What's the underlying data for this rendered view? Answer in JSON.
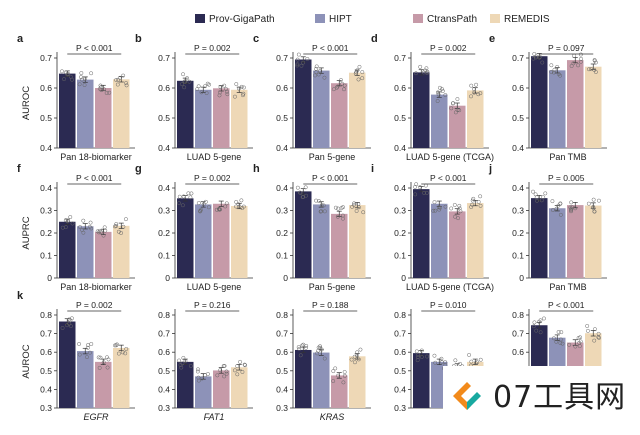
{
  "legend": {
    "series": [
      {
        "name": "Prov-GigaPath",
        "color": "#2b2a52"
      },
      {
        "name": "HIPT",
        "color": "#8d92b8"
      },
      {
        "name": "CtransPath",
        "color": "#c69aa8"
      },
      {
        "name": "REMEDIS",
        "color": "#eed8b6"
      }
    ]
  },
  "watermark": {
    "text": "07工具网",
    "colors": {
      "orange": "#f28a1b",
      "teal": "#18a9a0"
    }
  },
  "chart_data": [
    {
      "type": "bar",
      "panel_letter": "a",
      "row": 0,
      "col": 0,
      "ylabel": "AUROC",
      "xlabel": "Pan 18-biomarker",
      "xlabel_italic": false,
      "ylim": [
        0.4,
        0.7
      ],
      "ticks": [
        "0.4",
        "0.5",
        "0.6",
        "0.7"
      ],
      "p_text": "P < 0.001",
      "values": [
        0.648,
        0.628,
        0.6,
        0.629
      ]
    },
    {
      "type": "bar",
      "panel_letter": "b",
      "row": 0,
      "col": 1,
      "ylabel": "",
      "xlabel": "LUAD 5-gene",
      "xlabel_italic": false,
      "ylim": [
        0.4,
        0.7
      ],
      "ticks": [
        "0.4",
        "0.5",
        "0.6",
        "0.7"
      ],
      "p_text": "P = 0.002",
      "values": [
        0.624,
        0.594,
        0.599,
        0.594
      ]
    },
    {
      "type": "bar",
      "panel_letter": "c",
      "row": 0,
      "col": 2,
      "ylabel": "",
      "xlabel": "Pan 5-gene",
      "xlabel_italic": false,
      "ylim": [
        0.4,
        0.7
      ],
      "ticks": [
        "0.4",
        "0.5",
        "0.6",
        "0.7"
      ],
      "p_text": "P < 0.001",
      "values": [
        0.695,
        0.658,
        0.616,
        0.651
      ]
    },
    {
      "type": "bar",
      "panel_letter": "d",
      "row": 0,
      "col": 3,
      "ylabel": "",
      "xlabel": "LUAD 5-gene (TCGA)",
      "xlabel_italic": false,
      "ylim": [
        0.4,
        0.7
      ],
      "ticks": [
        "0.4",
        "0.5",
        "0.6",
        "0.7"
      ],
      "p_text": "P = 0.002",
      "values": [
        0.652,
        0.578,
        0.541,
        0.592
      ]
    },
    {
      "type": "bar",
      "panel_letter": "e",
      "row": 0,
      "col": 4,
      "ylabel": "",
      "xlabel": "Pan TMB",
      "xlabel_italic": false,
      "ylim": [
        0.4,
        0.7
      ],
      "ticks": [
        "0.4",
        "0.5",
        "0.6",
        "0.7"
      ],
      "p_text": "P = 0.097",
      "values": [
        0.706,
        0.659,
        0.693,
        0.671
      ]
    },
    {
      "type": "bar",
      "panel_letter": "f",
      "row": 1,
      "col": 0,
      "ylabel": "AUPRC",
      "xlabel": "Pan 18-biomarker",
      "xlabel_italic": false,
      "ylim": [
        0.0,
        0.4
      ],
      "ticks": [
        "0",
        "0.1",
        "0.2",
        "0.3",
        "0.4"
      ],
      "p_text": "P < 0.001",
      "values": [
        0.25,
        0.23,
        0.205,
        0.232
      ]
    },
    {
      "type": "bar",
      "panel_letter": "g",
      "row": 1,
      "col": 1,
      "ylabel": "",
      "xlabel": "LUAD 5-gene",
      "xlabel_italic": false,
      "ylim": [
        0.0,
        0.4
      ],
      "ticks": [
        "0",
        "0.1",
        "0.2",
        "0.3",
        "0.4"
      ],
      "p_text": "P = 0.002",
      "values": [
        0.354,
        0.327,
        0.33,
        0.32
      ]
    },
    {
      "type": "bar",
      "panel_letter": "h",
      "row": 1,
      "col": 2,
      "ylabel": "",
      "xlabel": "Pan 5-gene",
      "xlabel_italic": false,
      "ylim": [
        0.0,
        0.4
      ],
      "ticks": [
        "0",
        "0.1",
        "0.2",
        "0.3",
        "0.4"
      ],
      "p_text": "P < 0.001",
      "values": [
        0.385,
        0.327,
        0.285,
        0.324
      ]
    },
    {
      "type": "bar",
      "panel_letter": "i",
      "row": 1,
      "col": 3,
      "ylabel": "",
      "xlabel": "LUAD 5-gene (TCGA)",
      "xlabel_italic": false,
      "ylim": [
        0.0,
        0.4
      ],
      "ticks": [
        "0",
        "0.1",
        "0.2",
        "0.3",
        "0.4"
      ],
      "p_text": "P < 0.001",
      "values": [
        0.395,
        0.33,
        0.296,
        0.333
      ]
    },
    {
      "type": "bar",
      "panel_letter": "j",
      "row": 1,
      "col": 4,
      "ylabel": "",
      "xlabel": "Pan TMB",
      "xlabel_italic": false,
      "ylim": [
        0.0,
        0.4
      ],
      "ticks": [
        "0",
        "0.1",
        "0.2",
        "0.3",
        "0.4"
      ],
      "p_text": "P = 0.005",
      "values": [
        0.355,
        0.31,
        0.324,
        0.322
      ]
    },
    {
      "type": "bar",
      "panel_letter": "k",
      "row": 2,
      "col": 0,
      "ylabel": "AUROC",
      "xlabel": "EGFR",
      "xlabel_italic": true,
      "ylim": [
        0.3,
        0.8
      ],
      "ticks": [
        "0.3",
        "0.4",
        "0.5",
        "0.6",
        "0.7",
        "0.8"
      ],
      "p_text": "P = 0.002",
      "values": [
        0.765,
        0.606,
        0.548,
        0.623
      ]
    },
    {
      "type": "bar",
      "panel_letter": "",
      "row": 2,
      "col": 1,
      "ylabel": "",
      "xlabel": "FAT1",
      "xlabel_italic": true,
      "ylim": [
        0.3,
        0.8
      ],
      "ticks": [
        "0.3",
        "0.4",
        "0.5",
        "0.6",
        "0.7",
        "0.8"
      ],
      "p_text": "P = 0.216",
      "values": [
        0.548,
        0.47,
        0.502,
        0.519
      ]
    },
    {
      "type": "bar",
      "panel_letter": "",
      "row": 2,
      "col": 2,
      "ylabel": "",
      "xlabel": "KRAS",
      "xlabel_italic": true,
      "ylim": [
        0.3,
        0.8
      ],
      "ticks": [
        "0.3",
        "0.4",
        "0.5",
        "0.6",
        "0.7",
        "0.8"
      ],
      "p_text": "P = 0.188",
      "values": [
        0.612,
        0.598,
        0.475,
        0.578
      ]
    },
    {
      "type": "bar",
      "panel_letter": "",
      "row": 2,
      "col": 3,
      "ylabel": "",
      "xlabel": "",
      "xlabel_italic": false,
      "ylim": [
        0.3,
        0.8
      ],
      "ticks": [
        "0.3",
        "0.4",
        "0.5",
        "0.6",
        "0.7",
        "0.8"
      ],
      "p_text": "P = 0.010",
      "values": [
        0.595,
        0.548,
        0.523,
        0.548
      ]
    },
    {
      "type": "bar",
      "panel_letter": "",
      "row": 2,
      "col": 4,
      "ylabel": "",
      "xlabel": "",
      "xlabel_italic": false,
      "ylim": [
        0.3,
        0.8
      ],
      "ticks": [
        "0.3",
        "0.4",
        "0.5",
        "0.6",
        "0.7",
        "0.8"
      ],
      "p_text": "P < 0.001",
      "values": [
        0.745,
        0.678,
        0.652,
        0.702
      ]
    }
  ]
}
